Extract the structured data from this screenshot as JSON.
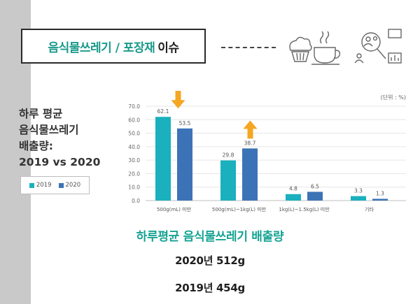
{
  "header": {
    "title_main": "음식물쓰레기 / 포장재",
    "title_suffix": "이슈"
  },
  "side_title": {
    "lines": [
      "하루 평균",
      "음식물쓰레기",
      "배출량:",
      "2019 vs 2020"
    ]
  },
  "colors": {
    "series_2019": "#1ab0be",
    "series_2020": "#3c73b6",
    "accent_teal": "#16a393",
    "arrow": "#f5a623"
  },
  "icons": [
    "food-icon",
    "analytics-icon"
  ],
  "chart_data": {
    "type": "bar",
    "unit_note": "(단위 : %)",
    "categories": [
      "500g(mL) 미만",
      "500g(mL)~1kg(L) 미만",
      "1kg(L)~1.5kg(L) 미만",
      "기타"
    ],
    "series": [
      {
        "name": "2019",
        "values": [
          62.1,
          29.8,
          4.8,
          3.3
        ],
        "labels": [
          "62.1",
          "29.8",
          "4.8",
          "3.3"
        ]
      },
      {
        "name": "2020",
        "values": [
          53.5,
          38.7,
          6.5,
          1.3
        ],
        "labels": [
          "53.5",
          "38.7",
          "6.5",
          "1.3"
        ]
      }
    ],
    "ylim": [
      0,
      70
    ],
    "yticks": [
      "0.0",
      "10.0",
      "20.0",
      "30.0",
      "40.0",
      "50.0",
      "60.0",
      "70.0"
    ],
    "grid": true,
    "legend": "left",
    "annotations": [
      {
        "category": 0,
        "direction": "down"
      },
      {
        "category": 1,
        "direction": "up"
      }
    ]
  },
  "bottom": {
    "title": "하루평균 음식물쓰레기 배출량",
    "line_2020": "2020년 512g",
    "line_2019": "2019년 454g"
  }
}
